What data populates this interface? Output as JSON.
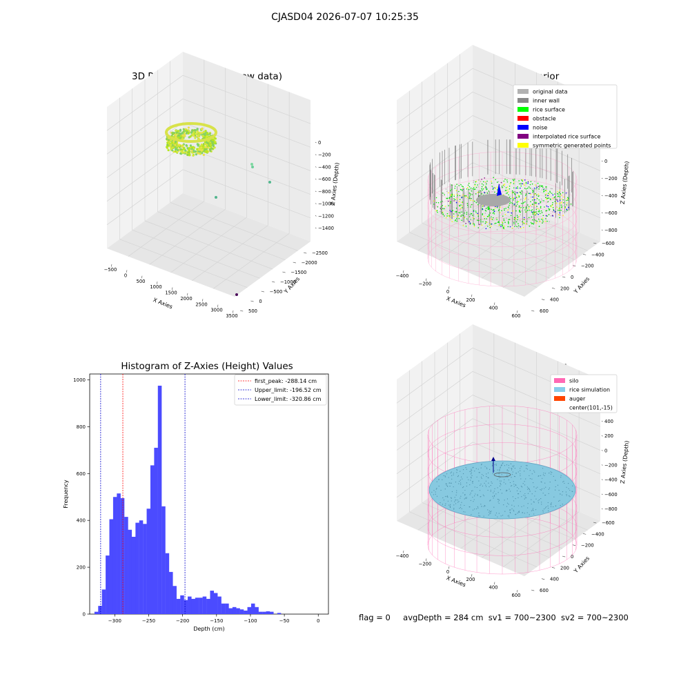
{
  "figure": {
    "title": "CJASD04 2026-07-07 10:25:35"
  },
  "status_line": {
    "flag": "flag = 0",
    "avg_depth": "avgDepth = 284 cm",
    "sv1": "sv1 = 700~2300",
    "sv2": "sv2 = 700~2300"
  },
  "colors": {
    "histogram_bar": "#4b4bff",
    "first_peak_line": "#ff0000",
    "limit_lines": "#0000cc",
    "original_data": "#b2b2b2",
    "inner_wall": "#888888",
    "rice_surface": "#00ff00",
    "obstacle": "#ff0000",
    "noise": "#0000ff",
    "interpolated_rice_surface": "#800080",
    "symmetric_generated_points": "#ffff00",
    "silo": "#ff69b4",
    "rice_simulation": "#87ceeb",
    "auger": "#ff4500"
  },
  "chart_data": [
    {
      "type": "scatter",
      "title": "3D Plot of Silo Interior(row data)",
      "xlabel": "X Axies",
      "ylabel": "Y Axies",
      "zlabel": "Z Axies (Depth)",
      "x_ticks": [
        "−500",
        "0",
        "500",
        "1000",
        "1500",
        "2000",
        "2500",
        "3000",
        "3500"
      ],
      "y_ticks": [
        "500",
        "0",
        "−500",
        "−1000",
        "−1500",
        "−2000",
        "−2500"
      ],
      "z_ticks": [
        "0",
        "−200",
        "−400",
        "−600",
        "−800",
        "−1000",
        "−1200",
        "−1400"
      ],
      "outlier_points": [
        {
          "x": 1400,
          "y": 200,
          "z": -420
        },
        {
          "x": 1550,
          "y": 150,
          "z": -600
        },
        {
          "x": 1100,
          "y": -300,
          "z": -850
        },
        {
          "x": 3300,
          "y": -2300,
          "z": -1500
        }
      ],
      "grid": true
    },
    {
      "type": "scatter",
      "title": "3D classify of Silo Interior",
      "xlabel": "X Axies",
      "ylabel": "Y Axies",
      "zlabel": "Z Axies (Depth)",
      "x_ticks": [
        "−400",
        "−200",
        "0",
        "200",
        "400",
        "600"
      ],
      "y_ticks": [
        "600",
        "400",
        "200",
        "0",
        "−200",
        "−400",
        "−600"
      ],
      "z_ticks": [
        "200",
        "0",
        "−200",
        "−400",
        "−600",
        "−800"
      ],
      "legend": [
        {
          "label": "original data",
          "color": "#b2b2b2"
        },
        {
          "label": "inner wall",
          "color": "#888888"
        },
        {
          "label": "rice surface",
          "color": "#00ff00"
        },
        {
          "label": "obstacle",
          "color": "#ff0000"
        },
        {
          "label": "noise",
          "color": "#0000ff"
        },
        {
          "label": "interpolated rice surface",
          "color": "#800080"
        },
        {
          "label": "symmetric generated points",
          "color": "#ffff00"
        }
      ],
      "legend_position": "top-right",
      "grid": true
    },
    {
      "type": "bar",
      "title": "Histogram of Z-Axies (Height) Values",
      "xlabel": "Depth (cm)",
      "ylabel": "Frequency",
      "xlim": [
        -337,
        15
      ],
      "ylim": [
        0,
        1025
      ],
      "x_ticks": [
        -300,
        -250,
        -200,
        -150,
        -100,
        -50,
        0
      ],
      "x_tick_labels": [
        "−300",
        "−250",
        "−200",
        "−150",
        "−100",
        "−50",
        "0"
      ],
      "y_ticks": [
        0,
        200,
        400,
        600,
        800,
        1000
      ],
      "bin_start": -330,
      "bin_width": 5.5,
      "values": [
        10,
        35,
        105,
        250,
        405,
        500,
        515,
        495,
        415,
        360,
        330,
        390,
        400,
        385,
        450,
        635,
        710,
        975,
        460,
        260,
        180,
        120,
        65,
        80,
        60,
        75,
        65,
        70,
        70,
        75,
        65,
        100,
        90,
        75,
        45,
        45,
        25,
        30,
        25,
        20,
        15,
        30,
        45,
        30,
        10,
        10,
        12,
        10,
        0,
        5
      ],
      "vlines": [
        {
          "label": "first_peak: -288.14 cm",
          "x": -288.14,
          "color": "#ff0000"
        },
        {
          "label": "Upper_limit: -196.52 cm",
          "x": -196.52,
          "color": "#0000cc"
        },
        {
          "label": "Lower_limit: -320.86 cm",
          "x": -320.86,
          "color": "#0000cc"
        }
      ],
      "legend_position": "top-right",
      "grid": false
    },
    {
      "type": "scatter",
      "title": "3D simulation of Silo Interior",
      "xlabel": "X Axies",
      "ylabel": "Y Axies",
      "zlabel": "Z Axies (Depth)",
      "x_ticks": [
        "−400",
        "−200",
        "0",
        "200",
        "400",
        "600"
      ],
      "y_ticks": [
        "600",
        "400",
        "200",
        "0",
        "−200",
        "−400",
        "−600"
      ],
      "z_ticks": [
        "400",
        "200",
        "0",
        "−200",
        "−400",
        "−600",
        "−800"
      ],
      "legend": [
        {
          "label": "silo",
          "color": "#ff69b4"
        },
        {
          "label": "rice simulation",
          "color": "#87ceeb"
        },
        {
          "label": "auger",
          "color": "#ff4500"
        },
        {
          "label": "center(101,-15)",
          "color": ""
        }
      ],
      "legend_position": "top-right",
      "grid": true
    }
  ]
}
